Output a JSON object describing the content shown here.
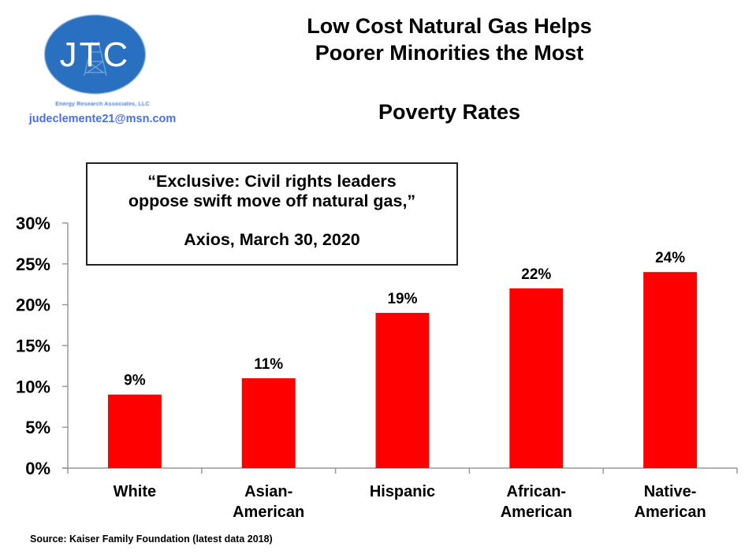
{
  "header": {
    "title_line1": "Low Cost Natural Gas Helps",
    "title_line2": "Poorer Minorities the Most",
    "subtitle": "Poverty Rates"
  },
  "logo": {
    "letters": "JTC",
    "company": "Energy Research Associates, LLC",
    "email": "judeclemente21@msn.com",
    "color": "#2a6fc0"
  },
  "quote": {
    "line1": "“Exclusive: Civil rights leaders",
    "line2": "oppose swift move off natural gas,”",
    "source": "Axios, March 30, 2020"
  },
  "footer": {
    "source": "Source: Kaiser Family Foundation (latest data 2018)"
  },
  "chart_data": {
    "type": "bar",
    "title": "Poverty Rates",
    "xlabel": "",
    "ylabel": "",
    "categories": [
      [
        "White"
      ],
      [
        "Asian-",
        "American"
      ],
      [
        "Hispanic"
      ],
      [
        "African-",
        "American"
      ],
      [
        "Native-",
        "American"
      ]
    ],
    "values": [
      9,
      11,
      19,
      22,
      24
    ],
    "data_labels": [
      "9%",
      "11%",
      "19%",
      "22%",
      "24%"
    ],
    "ylim": [
      0,
      30
    ],
    "yticks": [
      0,
      5,
      10,
      15,
      20,
      25,
      30
    ],
    "ytick_labels": [
      "0%",
      "5%",
      "10%",
      "15%",
      "20%",
      "25%",
      "30%"
    ],
    "grid": false,
    "legend": "none",
    "bar_color": "#ff0000",
    "axis_color": "#999999"
  }
}
